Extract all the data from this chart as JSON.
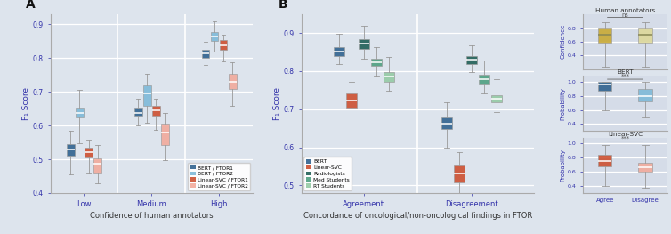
{
  "background_color": "#dde4ed",
  "colors": {
    "bert_ftor1": "#2b5f8c",
    "bert_ftor2": "#7bb8d8",
    "lsvc_ftor1": "#cc4b2b",
    "lsvc_ftor2": "#f2a899",
    "bert": "#2b5f8c",
    "lsvc": "#cc4b2b",
    "radiologists": "#1a5c52",
    "med_students": "#4a9e7e",
    "rt_students": "#92c9a2",
    "human_agree": "#c8a830",
    "human_disagree": "#ddd898",
    "bert_agree": "#2b5f8c",
    "bert_disagree": "#7bb8d8",
    "lsvc_agree": "#cc4b2b",
    "lsvc_disagree": "#f2a899"
  },
  "panel_A": {
    "ylabel": "F₁ Score",
    "xlabel": "Confidence of human annotators",
    "ylim": [
      0.4,
      0.93
    ],
    "yticks": [
      0.4,
      0.5,
      0.6,
      0.7,
      0.8,
      0.9
    ],
    "series": {
      "bert_ftor1": {
        "low": {
          "q1": 0.51,
          "med": 0.528,
          "q3": 0.544,
          "whislo": 0.455,
          "whishi": 0.585
        },
        "medium": {
          "q1": 0.628,
          "med": 0.638,
          "q3": 0.652,
          "whislo": 0.6,
          "whishi": 0.678
        },
        "high": {
          "q1": 0.8,
          "med": 0.814,
          "q3": 0.824,
          "whislo": 0.778,
          "whishi": 0.848
        }
      },
      "bert_ftor2": {
        "low": {
          "q1": 0.624,
          "med": 0.638,
          "q3": 0.652,
          "whislo": 0.548,
          "whishi": 0.705
        },
        "medium": {
          "q1": 0.658,
          "med": 0.694,
          "q3": 0.718,
          "whislo": 0.608,
          "whishi": 0.752
        },
        "high": {
          "q1": 0.85,
          "med": 0.864,
          "q3": 0.878,
          "whislo": 0.82,
          "whishi": 0.908
        }
      },
      "lsvc_ftor1": {
        "low": {
          "q1": 0.506,
          "med": 0.52,
          "q3": 0.533,
          "whislo": 0.458,
          "whishi": 0.558
        },
        "medium": {
          "q1": 0.628,
          "med": 0.644,
          "q3": 0.658,
          "whislo": 0.588,
          "whishi": 0.678
        },
        "high": {
          "q1": 0.824,
          "med": 0.838,
          "q3": 0.852,
          "whislo": 0.79,
          "whishi": 0.868
        }
      },
      "lsvc_ftor2": {
        "low": {
          "q1": 0.458,
          "med": 0.488,
          "q3": 0.503,
          "whislo": 0.428,
          "whishi": 0.542
        },
        "medium": {
          "q1": 0.542,
          "med": 0.578,
          "q3": 0.605,
          "whislo": 0.498,
          "whishi": 0.638
        },
        "high": {
          "q1": 0.708,
          "med": 0.728,
          "q3": 0.752,
          "whislo": 0.658,
          "whishi": 0.788
        }
      }
    }
  },
  "panel_B": {
    "ylabel": "F₁ Score",
    "xlabel": "Concordance of oncological/non-oncological findings in FTOR",
    "ylim": [
      0.48,
      0.95
    ],
    "yticks": [
      0.5,
      0.6,
      0.7,
      0.8,
      0.9
    ],
    "series": {
      "bert": {
        "agree": {
          "q1": 0.84,
          "med": 0.852,
          "q3": 0.862,
          "whislo": 0.818,
          "whishi": 0.898
        },
        "disagree": {
          "q1": 0.648,
          "med": 0.663,
          "q3": 0.678,
          "whislo": 0.598,
          "whishi": 0.718
        }
      },
      "lsvc": {
        "agree": {
          "q1": 0.705,
          "med": 0.724,
          "q3": 0.742,
          "whislo": 0.638,
          "whishi": 0.772
        },
        "disagree": {
          "q1": 0.508,
          "med": 0.532,
          "q3": 0.552,
          "whislo": 0.438,
          "whishi": 0.588
        }
      },
      "radiologists": {
        "agree": {
          "q1": 0.858,
          "med": 0.873,
          "q3": 0.883,
          "whislo": 0.832,
          "whishi": 0.918
        },
        "disagree": {
          "q1": 0.818,
          "med": 0.83,
          "q3": 0.84,
          "whislo": 0.798,
          "whishi": 0.868
        }
      },
      "med_students": {
        "agree": {
          "q1": 0.814,
          "med": 0.824,
          "q3": 0.833,
          "whislo": 0.788,
          "whishi": 0.862
        },
        "disagree": {
          "q1": 0.768,
          "med": 0.78,
          "q3": 0.79,
          "whislo": 0.742,
          "whishi": 0.828
        }
      },
      "rt_students": {
        "agree": {
          "q1": 0.773,
          "med": 0.786,
          "q3": 0.798,
          "whislo": 0.748,
          "whishi": 0.838
        },
        "disagree": {
          "q1": 0.718,
          "med": 0.728,
          "q3": 0.738,
          "whislo": 0.692,
          "whishi": 0.778
        }
      }
    }
  },
  "panel_C1": {
    "title": "Human annotators",
    "ylabel": "Confidence",
    "ylim": [
      0.18,
      1.02
    ],
    "yticks": [
      0.4,
      0.6,
      0.8
    ],
    "annotation": "ns",
    "series": {
      "agree": {
        "q1": 0.58,
        "med": 0.7,
        "q3": 0.8,
        "whislo": 0.22,
        "whishi": 0.9
      },
      "disagree": {
        "q1": 0.58,
        "med": 0.7,
        "q3": 0.8,
        "whislo": 0.22,
        "whishi": 0.9
      }
    }
  },
  "panel_C2": {
    "title": "BERT",
    "ylabel": "Probability",
    "ylim": [
      0.3,
      1.08
    ],
    "yticks": [
      0.4,
      0.6,
      0.8,
      1.0
    ],
    "annotation": "***",
    "series": {
      "agree": {
        "q1": 0.875,
        "med": 0.962,
        "q3": 0.992,
        "whislo": 0.598,
        "whishi": 1.0
      },
      "disagree": {
        "q1": 0.718,
        "med": 0.8,
        "q3": 0.898,
        "whislo": 0.498,
        "whishi": 1.0
      }
    }
  },
  "panel_C3": {
    "title": "Linear-SVC",
    "ylabel": "Probability",
    "ylim": [
      0.3,
      1.08
    ],
    "yticks": [
      0.4,
      0.6,
      0.8,
      1.0
    ],
    "annotation": "***",
    "series": {
      "agree": {
        "q1": 0.678,
        "med": 0.758,
        "q3": 0.838,
        "whislo": 0.398,
        "whishi": 0.978
      },
      "disagree": {
        "q1": 0.598,
        "med": 0.658,
        "q3": 0.728,
        "whislo": 0.378,
        "whishi": 0.978
      }
    }
  }
}
